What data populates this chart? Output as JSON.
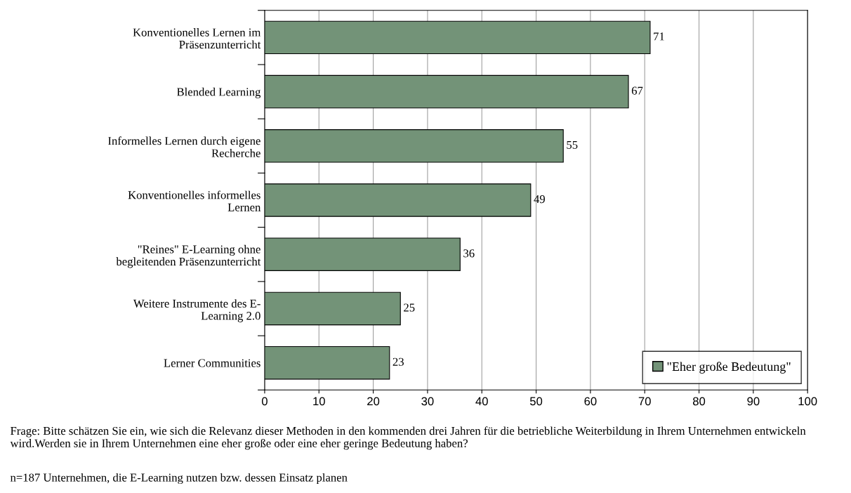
{
  "chart_data": {
    "type": "bar",
    "orientation": "horizontal",
    "categories": [
      "Konventionelles Lernen im\nPräsenzunterricht",
      "Blended Learning",
      "Informelles Lernen durch eigene\nRecherche",
      "Konventionelles informelles\nLernen",
      "\"Reines\" E-Learning ohne\nbegleitenden Präsenzunterricht",
      "Weitere Instrumente des E-\nLearning 2.0",
      "Lerner Communities"
    ],
    "series": [
      {
        "name": "\"Eher große Bedeutung\"",
        "color": "#739378",
        "values": [
          71,
          67,
          55,
          49,
          36,
          25,
          23
        ]
      }
    ],
    "data_labels": true,
    "xlim": [
      0,
      100
    ],
    "xticks": [
      0,
      10,
      20,
      30,
      40,
      50,
      60,
      70,
      80,
      90,
      100
    ],
    "grid": "x",
    "legend": "bottom right",
    "annotations": [
      "Frage: Bitte schätzen Sie ein, wie sich die Relevanz dieser Methoden in den kommenden drei Jahren für die betriebliche Weiterbildung in Ihrem Unternehmen entwickeln wird.Werden sie in Ihrem Unternehmen eine eher große oder eine eher geringe Bedeutung haben?",
      "n=187 Unternehmen, die E-Learning nutzen bzw. dessen Einsatz planen"
    ]
  }
}
